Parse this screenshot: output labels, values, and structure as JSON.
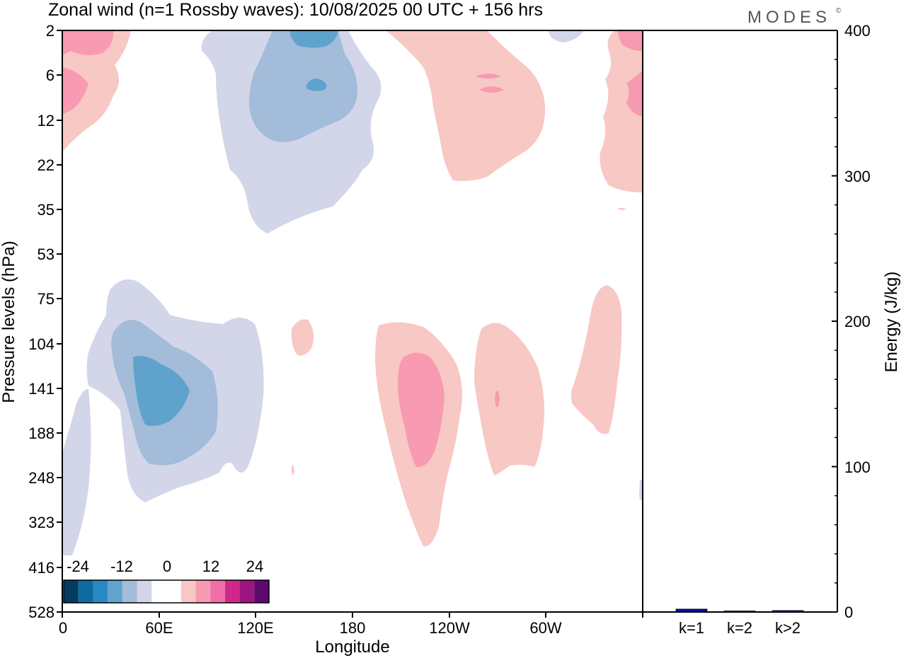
{
  "title": "Zonal wind (n=1 Rossby waves):  10/08/2025  00 UTC  + 156 hrs",
  "logo": "MODES",
  "logo_mark": "©",
  "colors": {
    "neg3": "#5fa3cc",
    "neg2": "#a2bcd9",
    "neg1": "#d3d5e8",
    "pos1": "#f8c8c4",
    "pos2": "#f79ab2",
    "pos3": "#f06fa8",
    "bar": "#0a0aa8"
  },
  "chart_data": [
    {
      "type": "heatmap",
      "title": "Zonal wind (n=1 Rossby waves):  10/08/2025  00 UTC  + 156 hrs",
      "xlabel": "Longitude",
      "ylabel": "Pressure levels (hPa)",
      "x_ticks": [
        "0",
        "60E",
        "120E",
        "180",
        "120W",
        "60W"
      ],
      "y_ticks": [
        "2",
        "6",
        "12",
        "22",
        "35",
        "53",
        "75",
        "104",
        "141",
        "188",
        "248",
        "323",
        "416",
        "528"
      ],
      "colorbar": {
        "tick_labels": [
          "-24",
          "-12",
          "0",
          "12",
          "24"
        ],
        "colors": [
          "#053c5e",
          "#0f6aa0",
          "#2a88c2",
          "#62a3cc",
          "#a2bcd9",
          "#d3d5e8",
          "#ffffff",
          "#ffffff",
          "#f8c8c4",
          "#f79ab2",
          "#f06fa8",
          "#d0288a",
          "#9c1580",
          "#5c0a6e"
        ]
      }
    },
    {
      "type": "bar",
      "ylabel": "Energy (J/kg)",
      "ylim": [
        0,
        400
      ],
      "y_ticks": [
        "0",
        "100",
        "200",
        "300",
        "400"
      ],
      "categories": [
        "k=1",
        "k=2",
        "k>2"
      ],
      "values": [
        2,
        0.3,
        1
      ]
    }
  ]
}
